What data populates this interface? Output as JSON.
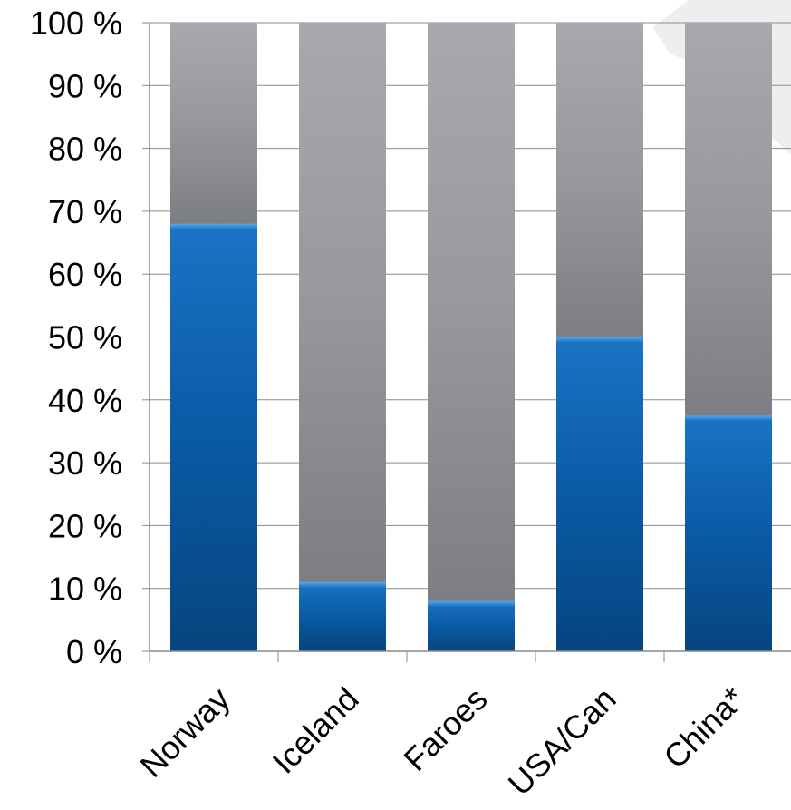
{
  "chart_data": {
    "type": "bar",
    "stacked": true,
    "title": "",
    "xlabel": "",
    "ylabel": "",
    "ylim": [
      0,
      100
    ],
    "yticks": [
      0,
      10,
      20,
      30,
      40,
      50,
      60,
      70,
      80,
      90,
      100
    ],
    "ytick_suffix": " %",
    "categories": [
      "Norway",
      "Iceland",
      "Faroes",
      "USA/Can",
      "China*"
    ],
    "series": [
      {
        "values": [
          68,
          11,
          8,
          50,
          37.5
        ],
        "color": "#0a5aa5"
      },
      {
        "values": [
          32,
          89,
          92,
          50,
          62.5
        ],
        "color": "#8e8f94"
      }
    ],
    "grid": true,
    "legend": "none"
  }
}
